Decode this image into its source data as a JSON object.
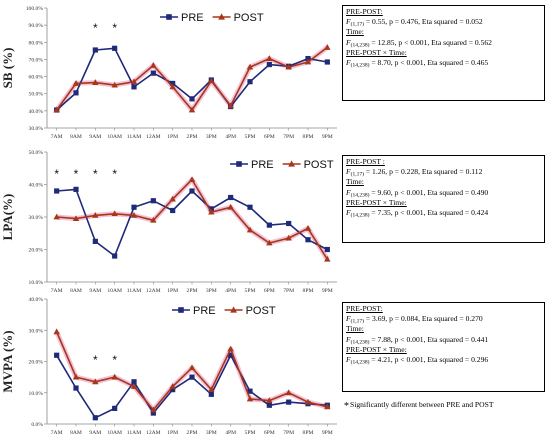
{
  "chart_data": [
    {
      "type": "line",
      "ylabel": "SB (%)",
      "ylim": [
        30,
        100
      ],
      "yticks": [
        "30.0%",
        "40.0%",
        "50.0%",
        "60.0%",
        "70.0%",
        "80.0%",
        "90.0%",
        "100.0%"
      ],
      "ytick_values": [
        30,
        40,
        50,
        60,
        70,
        80,
        90,
        100
      ],
      "categories": [
        "7AM",
        "8AM",
        "9AM",
        "10AM",
        "11AM",
        "12AM",
        "1PM",
        "2PM",
        "3PM",
        "4PM",
        "5PM",
        "6PM",
        "7PM",
        "8PM",
        "9PM"
      ],
      "series": [
        {
          "name": "PRE",
          "color": "#1f2a78",
          "marker": "square",
          "values": [
            40.5,
            50.5,
            75.5,
            76.5,
            54,
            62,
            56,
            47,
            58,
            42.5,
            57,
            67,
            66,
            70.5,
            68.5
          ]
        },
        {
          "name": "POST",
          "color": "#a8361a",
          "marker": "triangle",
          "values": [
            40.5,
            56,
            56.5,
            55,
            57,
            66.5,
            54,
            40.5,
            57.5,
            43,
            65.5,
            70.5,
            65.5,
            68.5,
            77
          ]
        }
      ],
      "significant": [
        "9AM",
        "10AM"
      ],
      "legend_position": "top-center",
      "grid": false
    },
    {
      "type": "line",
      "ylabel": "LPA(%)",
      "ylim": [
        10,
        50
      ],
      "yticks": [
        "10.0%",
        "20.0%",
        "30.0%",
        "40.0%",
        "50.0%"
      ],
      "ytick_values": [
        10,
        20,
        30,
        40,
        50
      ],
      "categories": [
        "7AM",
        "8AM",
        "9AM",
        "10AM",
        "11AM",
        "12AM",
        "1PM",
        "2PM",
        "3PM",
        "4PM",
        "5PM",
        "6PM",
        "7PM",
        "8PM",
        "9PM"
      ],
      "series": [
        {
          "name": "PRE",
          "color": "#1f2a78",
          "marker": "square",
          "values": [
            38,
            38.5,
            22.5,
            18,
            33,
            35,
            32,
            38,
            32.5,
            36,
            33,
            27.5,
            28,
            23,
            20
          ]
        },
        {
          "name": "POST",
          "color": "#a8361a",
          "marker": "triangle",
          "values": [
            30,
            29.5,
            30.5,
            31,
            30.5,
            29,
            35.5,
            41.5,
            31.5,
            33,
            26,
            22,
            23.5,
            26.5,
            17
          ]
        }
      ],
      "significant": [
        "7AM",
        "8AM",
        "9AM",
        "10AM"
      ],
      "legend_position": "top-right",
      "grid": false
    },
    {
      "type": "line",
      "ylabel": "MVPA (%)",
      "ylim": [
        0,
        40
      ],
      "yticks": [
        "0.0%",
        "10.0%",
        "20.0%",
        "30.0%",
        "40.0%"
      ],
      "ytick_values": [
        0,
        10,
        20,
        30,
        40
      ],
      "categories": [
        "7AM",
        "8AM",
        "9AM",
        "10AM",
        "11AM",
        "12AM",
        "1PM",
        "2PM",
        "3PM",
        "4PM",
        "5PM",
        "6PM",
        "7PM",
        "8PM",
        "9PM"
      ],
      "series": [
        {
          "name": "PRE",
          "color": "#1f2a78",
          "marker": "square",
          "values": [
            22,
            11.5,
            2,
            5,
            13.5,
            3.5,
            11,
            15,
            9.5,
            22,
            10.5,
            6,
            7,
            6.5,
            6
          ]
        },
        {
          "name": "POST",
          "color": "#a8361a",
          "marker": "triangle",
          "values": [
            29.5,
            15,
            13.5,
            15,
            12,
            4.5,
            12,
            18,
            11,
            24,
            8,
            7.5,
            10,
            7,
            5.5
          ]
        }
      ],
      "significant": [
        "9AM",
        "10AM"
      ],
      "legend_position": "top-center",
      "grid": false
    }
  ],
  "stats": [
    {
      "title": "PRE-POST:",
      "line1": {
        "F": "F",
        "sub": "(1,17)",
        "rest": " = 0.55, p = 0.476, Eta squared = 0.052"
      },
      "time_label": "Time:",
      "line2": {
        "F": "F",
        "sub": "(14,238)",
        "rest": " = 12.85, p < 0.001, Eta squared = 0.562"
      },
      "interaction_label": "PRE-POST × Time:",
      "line3": {
        "F": "F",
        "sub": "(14,238)",
        "rest": " = 8.70, p < 0.001, Eta squared = 0.465"
      }
    },
    {
      "title": "PRE-POST :",
      "line1": {
        "F": "F",
        "sub": "(1,17)",
        "rest": " = 1.26, p = 0.228, Eta squared = 0.112"
      },
      "time_label": "Time:",
      "line2": {
        "F": "F",
        "sub": "(14,238)",
        "rest": " = 9.60, p < 0.001, Eta squared = 0.490"
      },
      "interaction_label": "PRE-POST × Time:",
      "line3": {
        "F": "F",
        "sub": "(14,238)",
        "rest": " = 7.35, p < 0.001, Eta squared = 0.424"
      }
    },
    {
      "title": "PRE-POST:",
      "line1": {
        "F": "F",
        "sub": "(1,17)",
        "rest": " = 3.69, p = 0.084, Eta squared = 0.270"
      },
      "time_label": "Time:",
      "line2": {
        "F": "F",
        "sub": "(14,238)",
        "rest": " = 7.88, p < 0.001, Eta squared = 0.441"
      },
      "interaction_label": "PRE-POST × Time:",
      "line3": {
        "F": "F",
        "sub": "(14,238)",
        "rest": " = 4.21, p < 0.001, Eta squared = 0.296"
      }
    }
  ],
  "footnote": {
    "asterisk": "*",
    "text": "Significantly different between PRE and POST"
  }
}
